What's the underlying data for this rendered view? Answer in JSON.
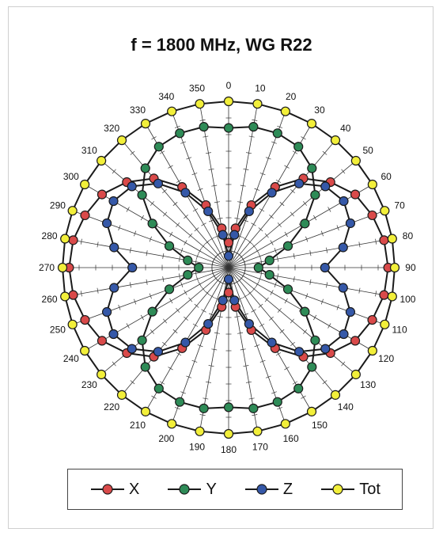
{
  "title": "f = 1800 MHz, WG R22",
  "chart_data": {
    "type": "polar-line",
    "title": "f = 1800 MHz, WG R22",
    "angle_unit": "degrees",
    "angles": [
      0,
      10,
      20,
      30,
      40,
      50,
      60,
      70,
      80,
      90,
      100,
      110,
      120,
      130,
      140,
      150,
      160,
      170,
      180,
      190,
      200,
      210,
      220,
      230,
      240,
      250,
      260,
      270,
      280,
      290,
      300,
      310,
      320,
      330,
      340,
      350
    ],
    "radial_range": [
      0,
      1
    ],
    "grid": true,
    "legend_position": "bottom",
    "series": [
      {
        "name": "X",
        "color": "#d94a4a",
        "values": [
          0.15,
          0.24,
          0.4,
          0.56,
          0.7,
          0.8,
          0.88,
          0.92,
          0.95,
          0.96,
          0.95,
          0.92,
          0.88,
          0.8,
          0.7,
          0.56,
          0.4,
          0.24,
          0.15,
          0.24,
          0.4,
          0.56,
          0.7,
          0.8,
          0.88,
          0.92,
          0.95,
          0.96,
          0.95,
          0.92,
          0.88,
          0.8,
          0.7,
          0.56,
          0.4,
          0.24
        ]
      },
      {
        "name": "Y",
        "color": "#2e8b57",
        "values": [
          0.84,
          0.86,
          0.86,
          0.84,
          0.78,
          0.68,
          0.53,
          0.38,
          0.25,
          0.18,
          0.25,
          0.38,
          0.53,
          0.68,
          0.78,
          0.84,
          0.86,
          0.86,
          0.84,
          0.86,
          0.86,
          0.84,
          0.78,
          0.68,
          0.53,
          0.38,
          0.25,
          0.18,
          0.25,
          0.38,
          0.53,
          0.68,
          0.78,
          0.84,
          0.86,
          0.86
        ]
      },
      {
        "name": "Z",
        "color": "#3558a8",
        "values": [
          0.07,
          0.2,
          0.36,
          0.52,
          0.66,
          0.76,
          0.8,
          0.78,
          0.7,
          0.58,
          0.7,
          0.78,
          0.8,
          0.76,
          0.66,
          0.52,
          0.36,
          0.2,
          0.07,
          0.2,
          0.36,
          0.52,
          0.66,
          0.76,
          0.8,
          0.78,
          0.7,
          0.58,
          0.7,
          0.78,
          0.8,
          0.76,
          0.66,
          0.52,
          0.36,
          0.2
        ]
      },
      {
        "name": "Tot",
        "color": "#f2ef3a",
        "values": [
          1.0,
          1.0,
          1.0,
          1.0,
          1.0,
          1.0,
          1.0,
          1.0,
          1.0,
          1.0,
          1.0,
          1.0,
          1.0,
          1.0,
          1.0,
          1.0,
          1.0,
          1.0,
          1.0,
          1.0,
          1.0,
          1.0,
          1.0,
          1.0,
          1.0,
          1.0,
          1.0,
          1.0,
          1.0,
          1.0,
          1.0,
          1.0,
          1.0,
          1.0,
          1.0,
          1.0
        ]
      }
    ]
  }
}
